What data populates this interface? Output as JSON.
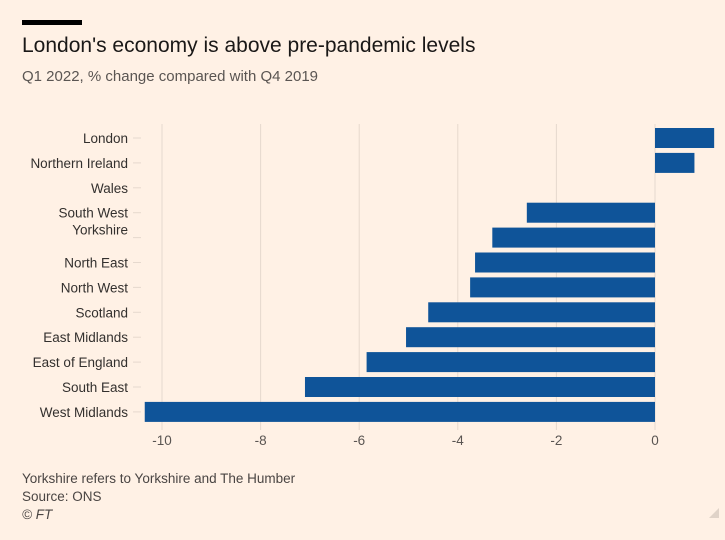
{
  "title": "London's economy is above pre-pandemic levels",
  "subtitle": "Q1 2022, % change compared with Q4 2019",
  "footnote": "Yorkshire refers to Yorkshire and The Humber",
  "source": "Source: ONS",
  "copyright": "© FT",
  "colors": {
    "bar": "#0f5499",
    "background": "#fff1e5",
    "grid": "#e6d9ce",
    "text": "#33302e"
  },
  "chart_data": {
    "type": "bar",
    "orientation": "horizontal",
    "title": "London's economy is above pre-pandemic levels",
    "subtitle": "Q1 2022, % change compared with Q4 2019",
    "xlabel": "",
    "ylabel": "",
    "xlim": [
      -10.4,
      1.2
    ],
    "xticks": [
      -10,
      -8,
      -6,
      -4,
      -2,
      0
    ],
    "xtick_labels": [
      "-10",
      "-8",
      "-6",
      "-4",
      "-2",
      "0"
    ],
    "categories": [
      "London",
      "Northern Ireland",
      "Wales",
      "South West",
      "Yorkshire",
      "North East",
      "North West",
      "Scotland",
      "East Midlands",
      "East of England",
      "South East",
      "West Midlands"
    ],
    "values": [
      1.2,
      0.8,
      null,
      -2.6,
      -3.3,
      -3.65,
      -3.75,
      -4.6,
      -5.05,
      -5.85,
      -7.1,
      -10.35
    ],
    "grid": true
  }
}
